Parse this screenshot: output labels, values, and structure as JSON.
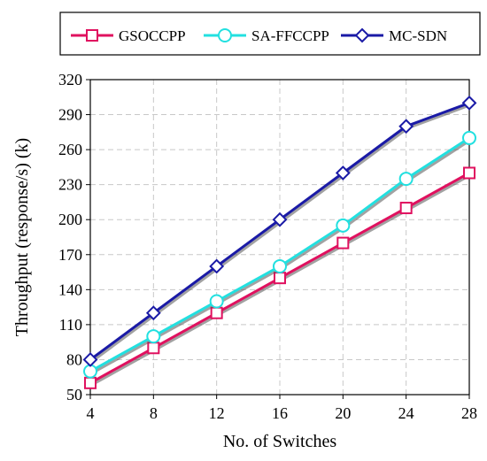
{
  "chart_data": {
    "type": "line",
    "title": "",
    "xlabel": "No. of Switches",
    "ylabel": "Throughput (response/s) (k)",
    "x": [
      4,
      8,
      12,
      16,
      20,
      24,
      28
    ],
    "xlim": [
      4,
      28
    ],
    "ylim": [
      50,
      320
    ],
    "yticks": [
      50,
      80,
      110,
      140,
      170,
      200,
      230,
      260,
      290,
      320
    ],
    "xticks": [
      4,
      8,
      12,
      16,
      20,
      24,
      28
    ],
    "grid": true,
    "legend": "top",
    "series": [
      {
        "name": "GSOCCPP",
        "color": "#e0115f",
        "marker": "square",
        "values": [
          60,
          90,
          120,
          150,
          180,
          210,
          240
        ]
      },
      {
        "name": "SA-FFCCPP",
        "color": "#22e0e0",
        "marker": "circle",
        "values": [
          70,
          100,
          130,
          160,
          195,
          235,
          270
        ]
      },
      {
        "name": "MC-SDN",
        "color": "#1a1aa6",
        "marker": "diamond",
        "values": [
          80,
          120,
          160,
          200,
          240,
          280,
          300
        ]
      }
    ]
  }
}
